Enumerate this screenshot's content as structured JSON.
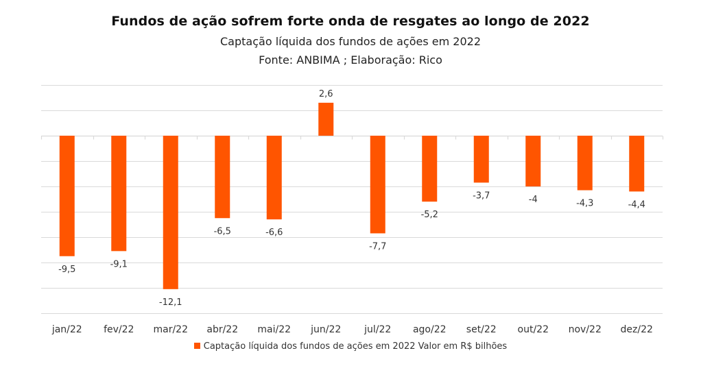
{
  "chart_data": {
    "type": "bar",
    "title": "Fundos de ação sofrem forte onda de resgates ao longo de 2022",
    "subtitle": "Captação líquida dos fundos de ações em 2022",
    "source": "Fonte: ANBIMA ; Elaboração: Rico",
    "xlabel": "",
    "ylabel": "",
    "ylim": [
      -14,
      4
    ],
    "ytick_step": 2,
    "grid": true,
    "y_tick_labels_visible": false,
    "legend_position": "bottom",
    "categories": [
      "jan/22",
      "fev/22",
      "mar/22",
      "abr/22",
      "mai/22",
      "jun/22",
      "jul/22",
      "ago/22",
      "set/22",
      "out/22",
      "nov/22",
      "dez/22"
    ],
    "series": [
      {
        "name": "Captação líquida dos fundos de ações em 2022 Valor em R$ bilhões",
        "color": "#FF5500",
        "values": [
          -9.5,
          -9.1,
          -12.1,
          -6.5,
          -6.6,
          2.6,
          -7.7,
          -5.2,
          -3.7,
          -4.0,
          -4.3,
          -4.4
        ],
        "data_labels": [
          "-9,5",
          "-9,1",
          "-12,1",
          "-6,5",
          "-6,6",
          "2,6",
          "-7,7",
          "-5,2",
          "-3,7",
          "-4",
          "-4,3",
          "-4,4"
        ]
      }
    ]
  }
}
